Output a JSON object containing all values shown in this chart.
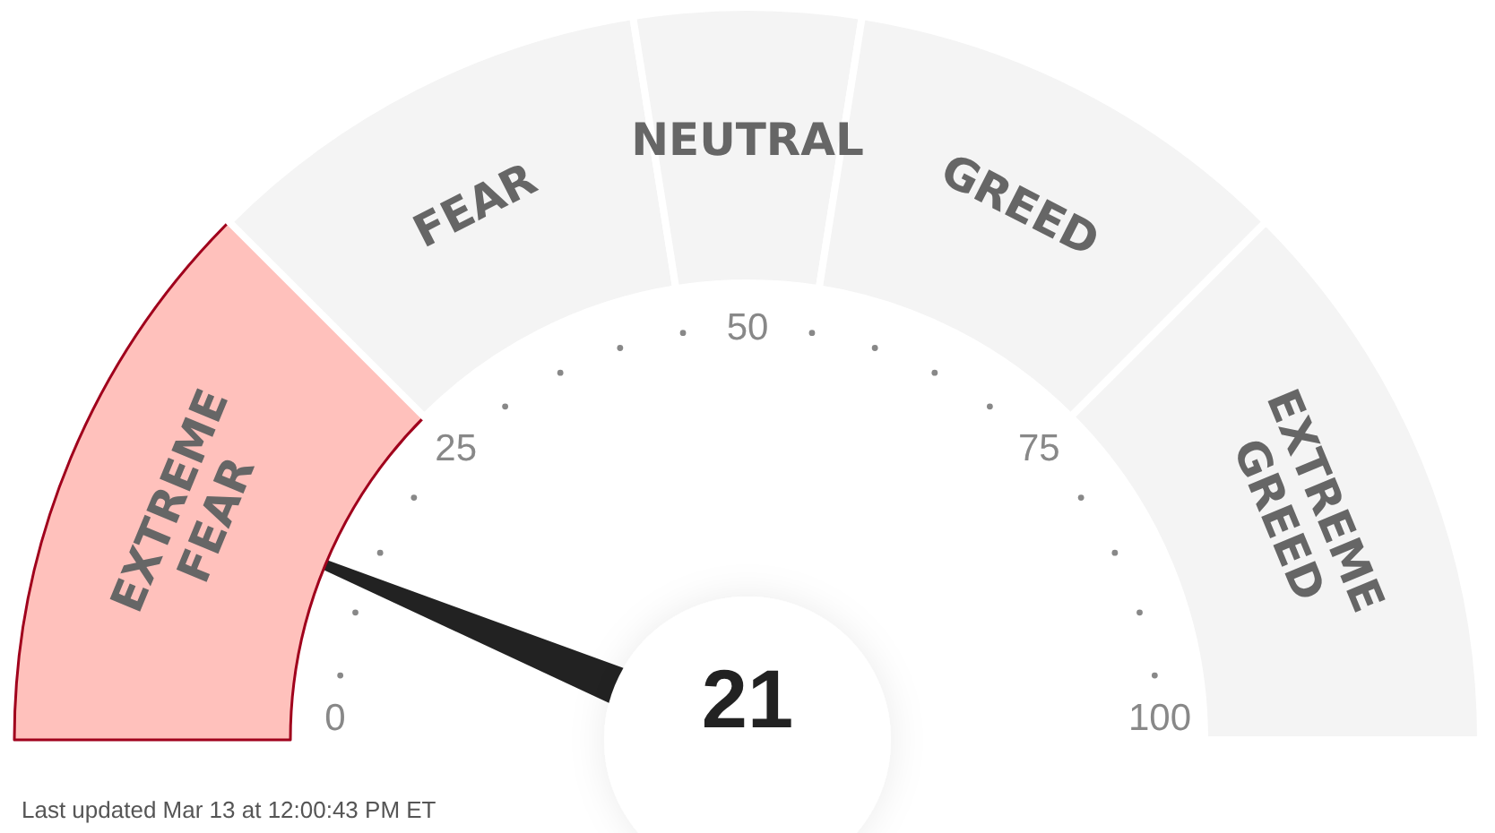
{
  "chart_data": {
    "type": "donut",
    "categories": [
      "EXTREME FEAR",
      "FEAR",
      "NEUTRAL",
      "GREED",
      "EXTREME GREED"
    ],
    "values": [
      25,
      20,
      10,
      20,
      25
    ],
    "colors": [
      "#ffc1bc",
      "#f4f4f4",
      "#f4f4f4",
      "#f4f4f4",
      "#f4f4f4"
    ],
    "needle": "EXTREME FEAR",
    "annotations": [
      "21",
      "0",
      "25",
      "50",
      "75",
      "100",
      "Last updated Mar 13 at 12:00:43 PM ET"
    ]
  }
}
